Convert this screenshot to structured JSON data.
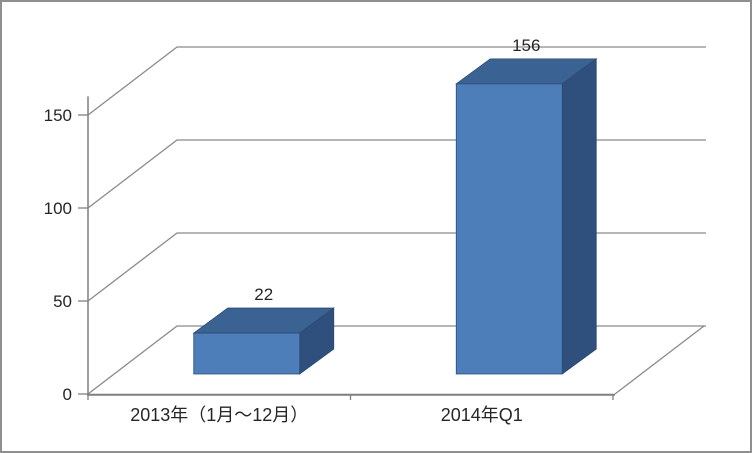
{
  "chart_data": {
    "type": "bar",
    "subtype": "3d-column",
    "title": "",
    "xlabel": "",
    "ylabel": "",
    "categories": [
      "2013年（1月～12月）",
      "2014年Q1"
    ],
    "values": [
      22,
      156
    ],
    "data_labels": [
      "22",
      "156"
    ],
    "yticks": [
      0,
      50,
      100,
      150
    ],
    "ylim": [
      0,
      160
    ],
    "grid": true,
    "legend": false,
    "colors": {
      "bar_front": "#4E7EB9",
      "bar_top": "#3A6293",
      "bar_side": "#2F4F7C",
      "bar_edge": "#2B4B73",
      "gridline": "#8a8a8a",
      "axis": "#7f7f7f",
      "text": "#262626",
      "border": "#8f8f8f",
      "background": "#ffffff"
    }
  }
}
